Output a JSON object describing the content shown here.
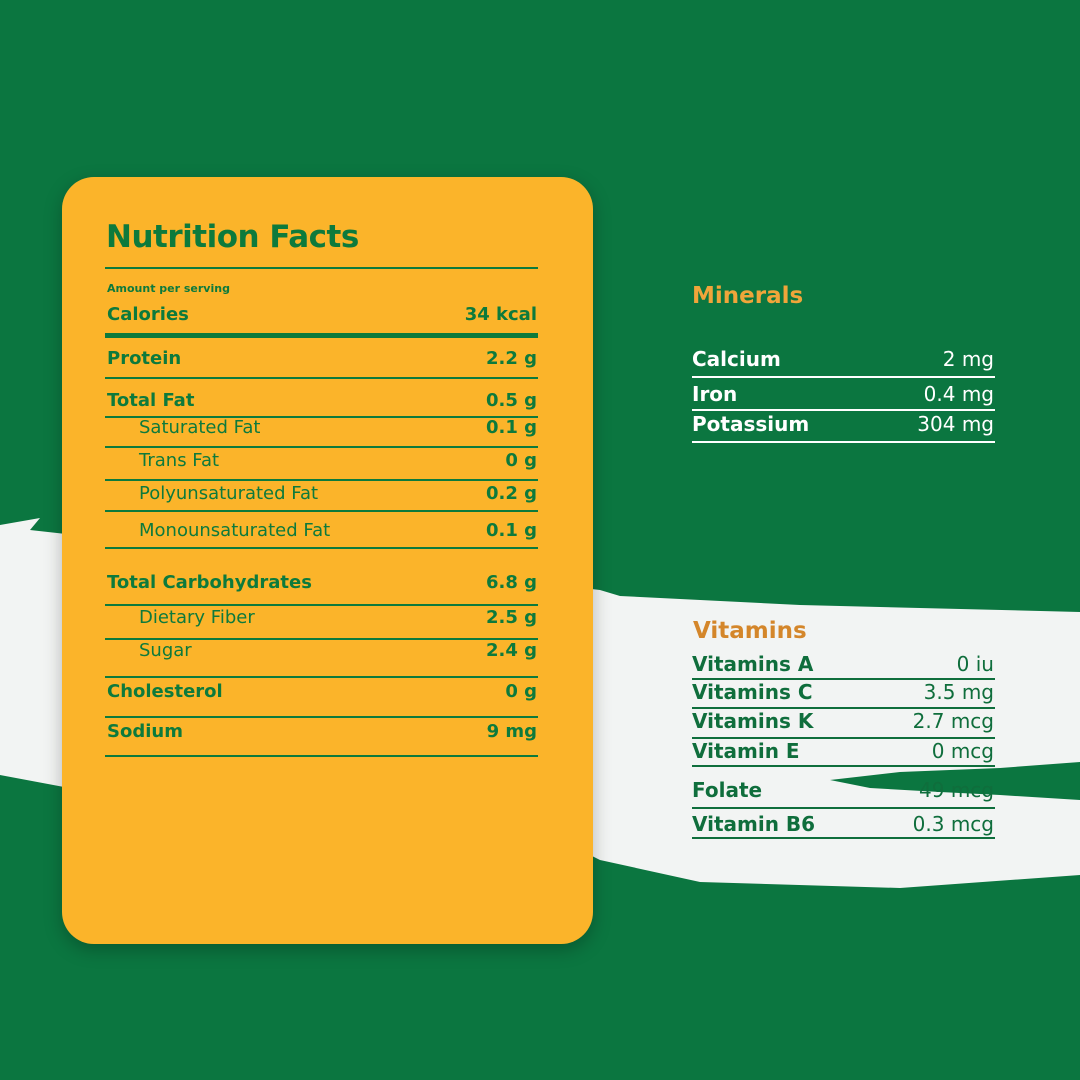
{
  "colors": {
    "background": "#0b7640",
    "card": "#fbb42a",
    "text_green": "#0d7a3c",
    "minerals_title": "#f0a53a",
    "vitamins_title": "#d4862a",
    "band": "#f2f4f3"
  },
  "facts": {
    "title": "Nutrition Facts",
    "amount_label": "Amount per serving",
    "rows": [
      {
        "label": "Calories",
        "value": "34 kcal"
      },
      {
        "label": "Protein",
        "value": "2.2 g"
      },
      {
        "label": "Total Fat",
        "value": "0.5 g"
      },
      {
        "label": "Saturated Fat",
        "value": "0.1 g",
        "sub": true
      },
      {
        "label": "Trans Fat",
        "value": "0 g",
        "sub": true
      },
      {
        "label": "Polyunsaturated Fat",
        "value": "0.2 g",
        "sub": true
      },
      {
        "label": "Monounsaturated Fat",
        "value": "0.1 g",
        "sub": true
      },
      {
        "label": "Total Carbohydrates",
        "value": "6.8 g"
      },
      {
        "label": "Dietary Fiber",
        "value": "2.5 g",
        "sub": true
      },
      {
        "label": "Sugar",
        "value": "2.4 g",
        "sub": true
      },
      {
        "label": "Cholesterol",
        "value": "0 g"
      },
      {
        "label": "Sodium",
        "value": "9 mg"
      }
    ]
  },
  "minerals": {
    "title": "Minerals",
    "rows": [
      {
        "label": "Calcium",
        "value": "2 mg"
      },
      {
        "label": "Iron",
        "value": "0.4 mg"
      },
      {
        "label": "Potassium",
        "value": "304 mg"
      }
    ]
  },
  "vitamins": {
    "title": "Vitamins",
    "rows": [
      {
        "label": "Vitamins A",
        "value": "0 iu"
      },
      {
        "label": "Vitamins C",
        "value": "3.5 mg"
      },
      {
        "label": "Vitamins K",
        "value": "2.7 mcg"
      },
      {
        "label": "Vitamin E",
        "value": "0 mcg"
      },
      {
        "label": "Folate",
        "value": "49 mcg"
      },
      {
        "label": "Vitamin B6",
        "value": "0.3 mcg"
      }
    ]
  }
}
